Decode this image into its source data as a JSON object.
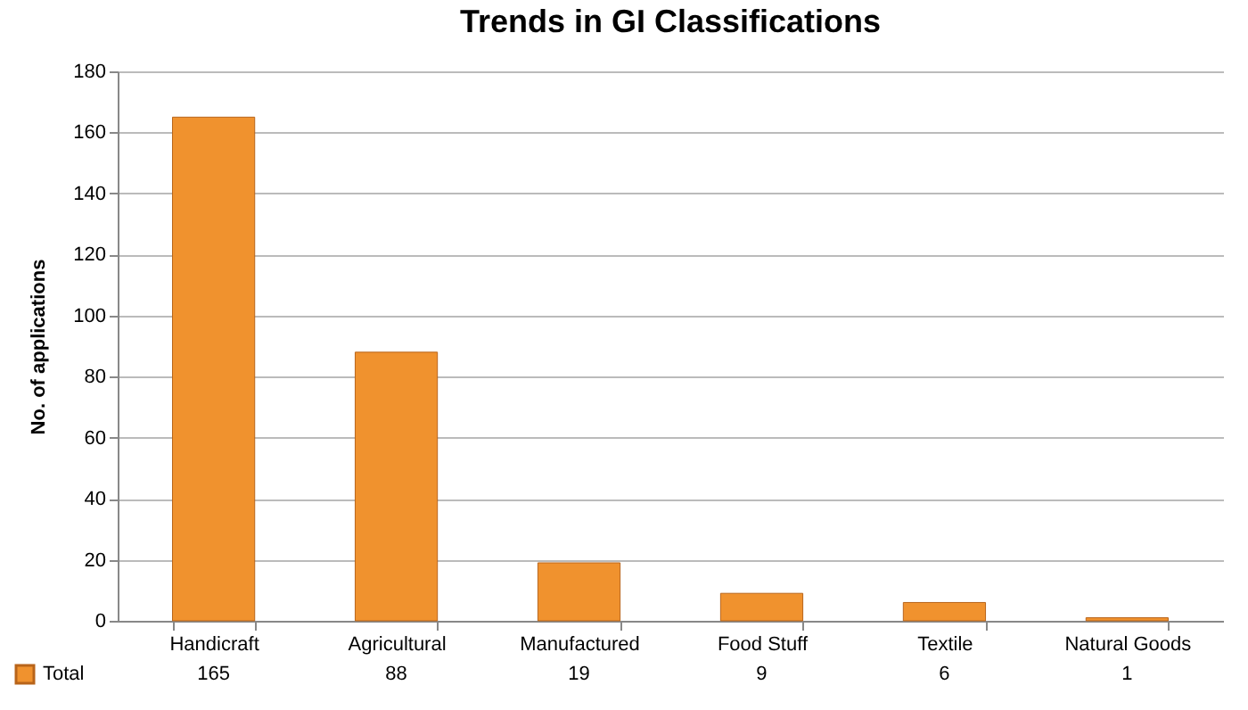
{
  "chart_data": {
    "type": "bar",
    "title": "Trends in GI Classifications",
    "ylabel": "No. of applications",
    "categories": [
      "Handicraft",
      "Agricultural",
      "Manufactured",
      "Food Stuff",
      "Textile",
      "Natural Goods"
    ],
    "series": [
      {
        "name": "Total",
        "color": "#f0922e",
        "values": [
          165,
          88,
          19,
          9,
          6,
          1
        ]
      }
    ],
    "ylim": [
      0,
      180
    ],
    "yticks": [
      0,
      20,
      40,
      60,
      80,
      100,
      120,
      140,
      160,
      180
    ],
    "grid": "y",
    "legend": "bottom left",
    "data_labels": true
  }
}
